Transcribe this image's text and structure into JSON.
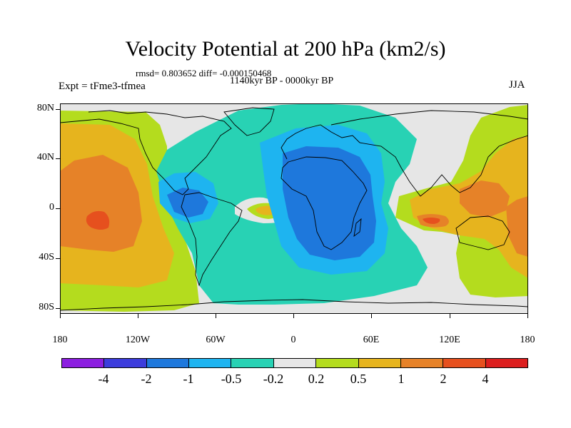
{
  "title": "Velocity Potential at 200 hPa (km2/s)",
  "stats": "rmsd= 0.803652  diff= -0.000150468",
  "period": "1140kyr BP - 0000kyr BP",
  "experiment": "Expt = tFme3-tfmea",
  "season": "JJA",
  "lat_labels": [
    "80N",
    "40N",
    "0",
    "40S",
    "80S"
  ],
  "lon_labels": [
    "180",
    "120W",
    "60W",
    "0",
    "60E",
    "120E",
    "180"
  ],
  "colorbar": {
    "labels": [
      "-4",
      "-2",
      "-1",
      "-0.5",
      "-0.2",
      "0.2",
      "0.5",
      "1",
      "2",
      "4"
    ],
    "colors": [
      "#8c1ee0",
      "#3c3cdc",
      "#1e78dc",
      "#1eb4f0",
      "#28d2b4",
      "#e6e6e6",
      "#b4dc1e",
      "#e6b41e",
      "#e68228",
      "#e6501e",
      "#dc1e1e"
    ]
  }
}
